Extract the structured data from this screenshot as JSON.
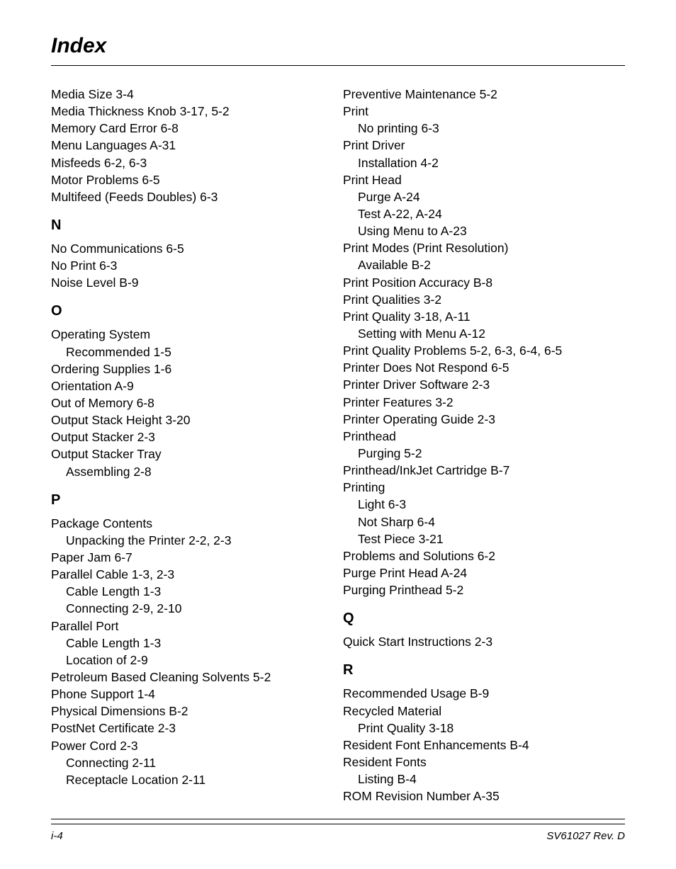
{
  "title": "Index",
  "footer": {
    "left": "i-4",
    "right": "SV61027 Rev. D"
  },
  "leftCol": [
    {
      "t": "entry",
      "text": "Media Size  3-4"
    },
    {
      "t": "entry",
      "text": "Media Thickness Knob  3-17,  5-2"
    },
    {
      "t": "entry",
      "text": "Memory Card Error  6-8"
    },
    {
      "t": "entry",
      "text": "Menu Languages  A-31"
    },
    {
      "t": "entry",
      "text": "Misfeeds  6-2,  6-3"
    },
    {
      "t": "entry",
      "text": "Motor Problems  6-5"
    },
    {
      "t": "entry",
      "text": "Multifeed (Feeds Doubles)  6-3"
    },
    {
      "t": "letter",
      "text": "N"
    },
    {
      "t": "entry",
      "text": "No Communications  6-5"
    },
    {
      "t": "entry",
      "text": "No Print  6-3"
    },
    {
      "t": "entry",
      "text": "Noise Level  B-9"
    },
    {
      "t": "letter",
      "text": "O"
    },
    {
      "t": "entry",
      "text": "Operating System"
    },
    {
      "t": "sub",
      "text": "Recommended  1-5"
    },
    {
      "t": "entry",
      "text": "Ordering Supplies  1-6"
    },
    {
      "t": "entry",
      "text": "Orientation  A-9"
    },
    {
      "t": "entry",
      "text": "Out of Memory  6-8"
    },
    {
      "t": "entry",
      "text": "Output Stack Height  3-20"
    },
    {
      "t": "entry",
      "text": "Output Stacker  2-3"
    },
    {
      "t": "entry",
      "text": "Output Stacker Tray"
    },
    {
      "t": "sub",
      "text": "Assembling  2-8"
    },
    {
      "t": "letter",
      "text": "P"
    },
    {
      "t": "entry",
      "text": "Package Contents"
    },
    {
      "t": "sub",
      "text": "Unpacking the Printer  2-2,  2-3"
    },
    {
      "t": "entry",
      "text": "Paper Jam  6-7"
    },
    {
      "t": "entry",
      "text": "Parallel Cable  1-3,  2-3"
    },
    {
      "t": "sub",
      "text": "Cable Length  1-3"
    },
    {
      "t": "sub",
      "text": "Connecting  2-9,  2-10"
    },
    {
      "t": "entry",
      "text": "Parallel Port"
    },
    {
      "t": "sub",
      "text": "Cable Length  1-3"
    },
    {
      "t": "sub",
      "text": "Location of  2-9"
    },
    {
      "t": "entry",
      "text": "Petroleum Based Cleaning Solvents  5-2"
    },
    {
      "t": "entry",
      "text": "Phone Support  1-4"
    },
    {
      "t": "entry",
      "text": "Physical Dimensions  B-2"
    },
    {
      "t": "entry",
      "text": "PostNet Certificate  2-3"
    },
    {
      "t": "entry",
      "text": "Power Cord  2-3"
    },
    {
      "t": "sub",
      "text": "Connecting  2-11"
    },
    {
      "t": "sub",
      "text": "Receptacle Location  2-11"
    }
  ],
  "rightCol": [
    {
      "t": "entry",
      "text": "Preventive Maintenance  5-2"
    },
    {
      "t": "entry",
      "text": "Print"
    },
    {
      "t": "sub",
      "text": "No printing  6-3"
    },
    {
      "t": "entry",
      "text": "Print Driver"
    },
    {
      "t": "sub",
      "text": "Installation  4-2"
    },
    {
      "t": "entry",
      "text": "Print Head"
    },
    {
      "t": "sub",
      "text": "Purge  A-24"
    },
    {
      "t": "sub",
      "text": "Test  A-22,  A-24"
    },
    {
      "t": "sub",
      "text": "Using Menu to  A-23"
    },
    {
      "t": "entry",
      "text": "Print Modes (Print Resolution)"
    },
    {
      "t": "sub",
      "text": "Available  B-2"
    },
    {
      "t": "entry",
      "text": "Print Position Accuracy  B-8"
    },
    {
      "t": "entry",
      "text": "Print Qualities  3-2"
    },
    {
      "t": "entry",
      "text": "Print Quality  3-18,  A-11"
    },
    {
      "t": "sub",
      "text": "Setting with Menu  A-12"
    },
    {
      "t": "entry",
      "text": "Print Quality Problems  5-2,  6-3,  6-4,  6-5"
    },
    {
      "t": "entry",
      "text": "Printer Does Not Respond  6-5"
    },
    {
      "t": "entry",
      "text": "Printer Driver Software  2-3"
    },
    {
      "t": "entry",
      "text": "Printer Features  3-2"
    },
    {
      "t": "entry",
      "text": "Printer Operating Guide  2-3"
    },
    {
      "t": "entry",
      "text": "Printhead"
    },
    {
      "t": "sub",
      "text": "Purging  5-2"
    },
    {
      "t": "entry",
      "text": "Printhead/InkJet Cartridge  B-7"
    },
    {
      "t": "entry",
      "text": "Printing"
    },
    {
      "t": "sub",
      "text": "Light  6-3"
    },
    {
      "t": "sub",
      "text": "Not Sharp  6-4"
    },
    {
      "t": "sub",
      "text": "Test Piece  3-21"
    },
    {
      "t": "entry",
      "text": "Problems and Solutions  6-2"
    },
    {
      "t": "entry",
      "text": "Purge Print Head  A-24"
    },
    {
      "t": "entry",
      "text": "Purging Printhead  5-2"
    },
    {
      "t": "letter",
      "text": "Q"
    },
    {
      "t": "entry",
      "text": "Quick Start Instructions  2-3"
    },
    {
      "t": "letter",
      "text": "R"
    },
    {
      "t": "entry",
      "text": "Recommended Usage  B-9"
    },
    {
      "t": "entry",
      "text": "Recycled Material"
    },
    {
      "t": "sub",
      "text": "Print Quality  3-18"
    },
    {
      "t": "entry",
      "text": "Resident Font Enhancements  B-4"
    },
    {
      "t": "entry",
      "text": "Resident Fonts"
    },
    {
      "t": "sub",
      "text": "Listing  B-4"
    },
    {
      "t": "entry",
      "text": "ROM Revision Number  A-35"
    }
  ]
}
